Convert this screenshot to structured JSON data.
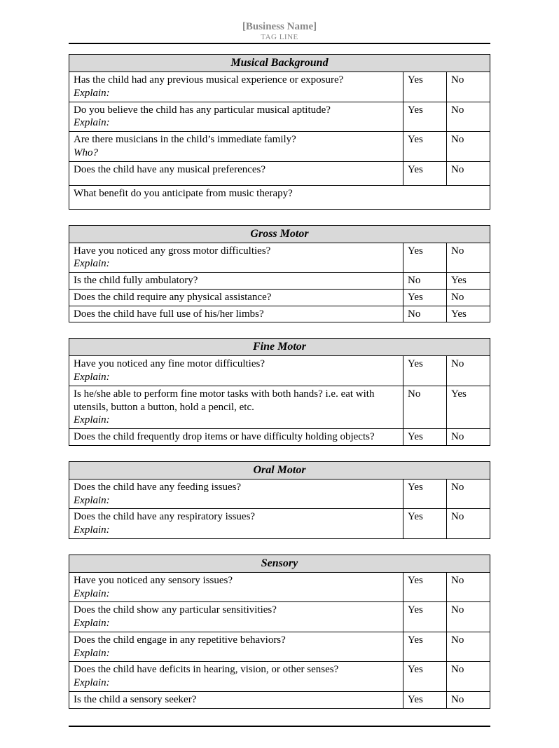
{
  "header": {
    "business_name": "[Business Name]",
    "tagline": "TAG LINE"
  },
  "labels": {
    "yes": "Yes",
    "no": "No",
    "explain": "Explain:",
    "who": "Who?"
  },
  "sections": {
    "musical": {
      "title": "Musical Background",
      "q1": "Has the child had any previous musical experience or exposure?",
      "q2": "Do you believe the child has any particular musical aptitude?",
      "q3": "Are there musicians in the child’s immediate family?",
      "q4": "Does the child have any musical preferences?",
      "q5": "What benefit do you anticipate from music therapy?"
    },
    "gross": {
      "title": "Gross Motor",
      "q1": "Have you noticed any gross motor difficulties?",
      "q2": "Is the child fully ambulatory?",
      "q3": "Does the child require any physical assistance?",
      "q4": "Does the child have full use of his/her limbs?"
    },
    "fine": {
      "title": "Fine Motor",
      "q1": "Have you noticed any fine motor difficulties?",
      "q2": "Is he/she able to perform fine motor tasks with both hands? i.e. eat with utensils, button a button, hold a pencil, etc.",
      "q3": "Does the child frequently drop items or have difficulty holding objects?"
    },
    "oral": {
      "title": "Oral Motor",
      "q1": "Does the child have any feeding issues?",
      "q2": "Does the child have any respiratory issues?"
    },
    "sensory": {
      "title": "Sensory",
      "q1": "Have you noticed any sensory issues?",
      "q2": "Does the child show any particular sensitivities?",
      "q3": "Does the child engage in any repetitive behaviors?",
      "q4": "Does the child have deficits in hearing, vision, or other senses?",
      "q5": "Is the child a sensory seeker?"
    }
  }
}
